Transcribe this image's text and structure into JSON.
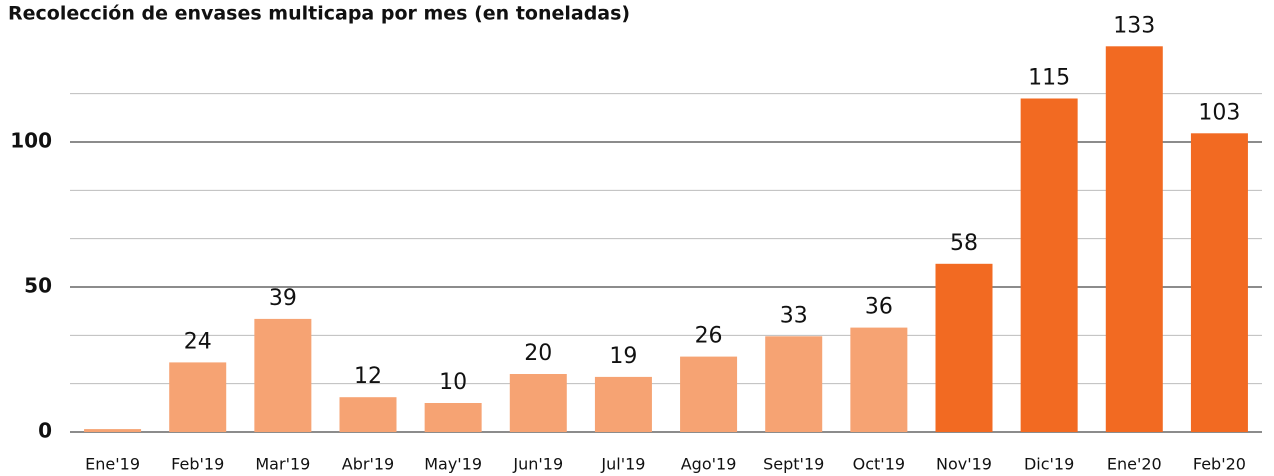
{
  "chart_data": {
    "type": "bar",
    "title": "Recolección de envases multicapa por mes (en toneladas)",
    "categories": [
      "Ene'19",
      "Feb'19",
      "Mar'19",
      "Abr'19",
      "May'19",
      "Jun'19",
      "Jul'19",
      "Ago'19",
      "Sept'19",
      "Oct'19",
      "Nov'19",
      "Dic'19",
      "Ene'20",
      "Feb'20"
    ],
    "values": [
      1,
      24,
      39,
      12,
      10,
      20,
      19,
      26,
      33,
      36,
      58,
      115,
      133,
      103
    ],
    "value_labels": [
      null,
      "24",
      "39",
      "12",
      "10",
      "20",
      "19",
      "26",
      "33",
      "36",
      "58",
      "115",
      "133",
      "103"
    ],
    "colors": [
      "#f6a373",
      "#f6a373",
      "#f6a373",
      "#f6a373",
      "#f6a373",
      "#f6a373",
      "#f6a373",
      "#f6a373",
      "#f6a373",
      "#f6a373",
      "#f26a22",
      "#f26a22",
      "#f26a22",
      "#f26a22"
    ],
    "ylim": [
      0,
      140
    ],
    "yticks": [
      0,
      50,
      100
    ],
    "minor_yticks": [
      16.67,
      33.33,
      66.67,
      83.33,
      116.67
    ],
    "grid": true
  }
}
